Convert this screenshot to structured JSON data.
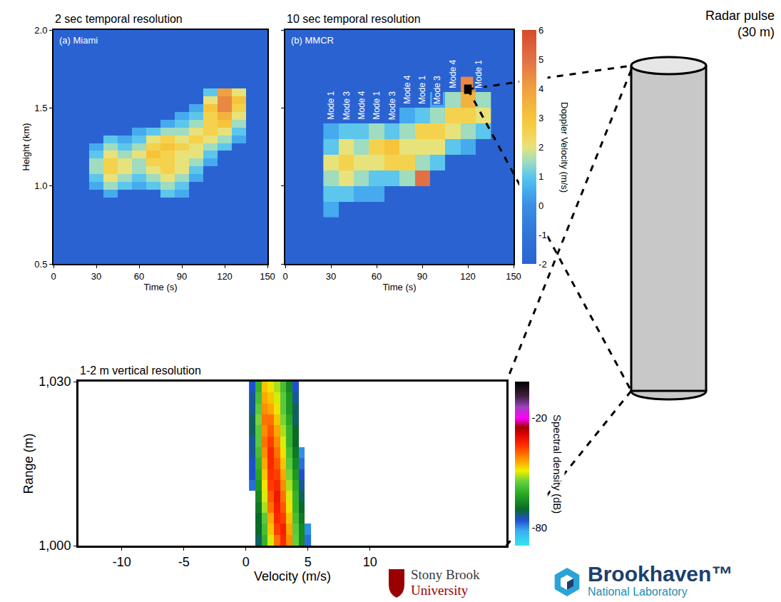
{
  "chart_data": [
    {
      "type": "heatmap",
      "title": "2 sec temporal resolution",
      "panel_label": "(a) Miami",
      "x_label": "Time (s)",
      "y_label": "Height (km)",
      "x": [
        30,
        40,
        50,
        60,
        70,
        80,
        90,
        100,
        110,
        120,
        130
      ],
      "y": [
        0.95,
        1.0,
        1.05,
        1.1,
        1.15,
        1.2,
        1.25,
        1.3,
        1.35,
        1.4,
        1.45,
        1.5,
        1.55,
        1.6
      ],
      "z": [
        [
          null,
          0.5,
          null,
          null,
          null,
          1.0,
          0.5,
          null,
          null,
          null,
          null
        ],
        [
          0.5,
          1.5,
          1.0,
          0.5,
          1.0,
          1.5,
          1.0,
          null,
          null,
          null,
          null
        ],
        [
          1.0,
          2.0,
          1.5,
          1.0,
          1.5,
          2.0,
          1.5,
          0.5,
          null,
          null,
          null
        ],
        [
          1.5,
          2.5,
          2.0,
          1.5,
          2.0,
          2.5,
          2.0,
          1.0,
          null,
          null,
          null
        ],
        [
          1.5,
          2.5,
          2.0,
          1.5,
          2.5,
          2.5,
          2.0,
          1.5,
          0.5,
          null,
          null
        ],
        [
          1.0,
          2.0,
          1.5,
          2.0,
          3.0,
          2.5,
          2.0,
          2.0,
          1.0,
          null,
          null
        ],
        [
          0.5,
          1.5,
          1.0,
          1.5,
          2.5,
          3.0,
          2.5,
          2.0,
          1.5,
          1.0,
          null
        ],
        [
          null,
          1.0,
          0.5,
          1.0,
          2.0,
          2.5,
          2.0,
          2.5,
          2.0,
          1.5,
          0.5
        ],
        [
          null,
          null,
          null,
          0.5,
          1.0,
          1.5,
          1.5,
          2.0,
          2.5,
          2.0,
          1.0
        ],
        [
          null,
          null,
          null,
          null,
          null,
          0.5,
          1.0,
          1.5,
          2.5,
          3.0,
          1.5
        ],
        [
          null,
          null,
          null,
          null,
          null,
          null,
          0.5,
          1.0,
          2.5,
          3.5,
          2.0
        ],
        [
          null,
          null,
          null,
          null,
          null,
          null,
          null,
          0.5,
          3.0,
          4.5,
          2.5
        ],
        [
          null,
          null,
          null,
          null,
          null,
          null,
          null,
          null,
          2.0,
          4.5,
          3.0
        ],
        [
          null,
          null,
          null,
          null,
          null,
          null,
          null,
          null,
          1.0,
          4.0,
          2.0
        ]
      ],
      "xlim": [
        0,
        150
      ],
      "xticks": [
        0,
        30,
        60,
        90,
        120,
        150
      ],
      "ylim": [
        0.5,
        2.0
      ],
      "yticks": [
        0.5,
        {
          "value": 1,
          "label": "1.0"
        },
        1.5,
        {
          "value": 2,
          "label": "2.0"
        }
      ]
    },
    {
      "type": "heatmap",
      "title": "10 sec temporal resolution",
      "panel_label": "(b) MMCR",
      "x_label": "Time (s)",
      "tick_labels": "x",
      "x": [
        30,
        40,
        50,
        60,
        70,
        80,
        90,
        100,
        110,
        120,
        130
      ],
      "y": [
        0.85,
        0.95,
        1.05,
        1.15,
        1.25,
        1.35,
        1.45,
        1.55,
        1.65
      ],
      "z": [
        [
          0.5,
          null,
          null,
          null,
          null,
          null,
          null,
          null,
          null,
          null,
          null
        ],
        [
          1.0,
          1.0,
          0.5,
          0.5,
          null,
          null,
          null,
          null,
          null,
          null,
          null
        ],
        [
          1.5,
          2.0,
          1.5,
          1.0,
          1.0,
          1.5,
          5.0,
          null,
          null,
          null,
          null
        ],
        [
          2.0,
          2.5,
          2.0,
          2.0,
          2.5,
          2.5,
          1.5,
          1.0,
          null,
          null,
          null
        ],
        [
          1.0,
          2.0,
          1.5,
          2.5,
          3.0,
          2.0,
          2.0,
          2.0,
          1.0,
          0.5,
          null
        ],
        [
          0.5,
          1.0,
          1.0,
          1.5,
          1.0,
          1.5,
          2.5,
          2.5,
          2.0,
          1.5,
          1.0
        ],
        [
          null,
          null,
          null,
          null,
          null,
          0.5,
          1.0,
          1.5,
          2.5,
          2.5,
          2.0
        ],
        [
          null,
          null,
          null,
          null,
          null,
          null,
          null,
          0.5,
          1.5,
          3.5,
          1.5
        ],
        [
          null,
          null,
          null,
          null,
          null,
          null,
          null,
          null,
          null,
          4.5,
          null
        ]
      ],
      "xlim": [
        0,
        150
      ],
      "xticks": [
        0,
        30,
        60,
        90,
        120,
        150
      ],
      "ylim": [
        0.5,
        2.0
      ],
      "yticks": [
        0.5,
        {
          "value": 1,
          "label": "1.0"
        },
        1.5,
        {
          "value": 2,
          "label": "2.0"
        }
      ],
      "annotations": [
        {
          "text": "Mode 1",
          "x": 30,
          "y": 1.42
        },
        {
          "text": "Mode 3",
          "x": 40,
          "y": 1.42
        },
        {
          "text": "Mode 4",
          "x": 50,
          "y": 1.42
        },
        {
          "text": "Mode 1",
          "x": 60,
          "y": 1.42
        },
        {
          "text": "Mode 3",
          "x": 70,
          "y": 1.42
        },
        {
          "text": "Mode 4",
          "x": 80,
          "y": 1.52
        },
        {
          "text": "Mode 1",
          "x": 90,
          "y": 1.52
        },
        {
          "text": "Mode 3",
          "x": 100,
          "y": 1.52
        },
        {
          "text": "Mode 4",
          "x": 110,
          "y": 1.62
        },
        {
          "text": "Mode 1",
          "x": 127,
          "y": 1.62
        }
      ],
      "highlight": {
        "x": 120,
        "y": 1.62
      },
      "colorbar": {
        "title": "Doppler Velocity (m/s)",
        "range": [
          -2,
          6
        ],
        "ticks": [
          -2,
          -1,
          0,
          1,
          2,
          3,
          4,
          5,
          6
        ]
      }
    },
    {
      "type": "heatmap",
      "title": "1-2 m vertical resolution",
      "x_label": "Velocity (m/s)",
      "y_label": "Range (m)",
      "x": [
        0.5,
        1.0,
        1.5,
        2.0,
        2.5,
        3.0,
        3.5,
        4.0,
        4.5,
        5.0
      ],
      "y": [
        1001,
        1003,
        1005,
        1007,
        1009,
        1011,
        1013,
        1015,
        1017,
        1019,
        1021,
        1023,
        1025,
        1027,
        1029
      ],
      "z": [
        [
          null,
          -72,
          -60,
          -50,
          -40,
          -34,
          -42,
          -55,
          -66,
          -78
        ],
        [
          null,
          -70,
          -58,
          -46,
          -36,
          -33,
          -44,
          -56,
          -66,
          -80
        ],
        [
          null,
          -70,
          -56,
          -44,
          -34,
          -36,
          -46,
          -58,
          -68,
          null
        ],
        [
          null,
          -68,
          -52,
          -40,
          -33,
          -38,
          -48,
          -60,
          -70,
          null
        ],
        [
          null,
          -66,
          -50,
          -38,
          -32,
          -40,
          -50,
          -60,
          -72,
          null
        ],
        [
          -78,
          -64,
          -48,
          -36,
          -34,
          -42,
          -52,
          -62,
          -74,
          null
        ],
        [
          -76,
          -62,
          -46,
          -35,
          -36,
          -44,
          -54,
          -64,
          -76,
          null
        ],
        [
          -76,
          -60,
          -44,
          -34,
          -38,
          -46,
          -56,
          -66,
          -78,
          null
        ],
        [
          -74,
          -58,
          -42,
          -34,
          -40,
          -48,
          -58,
          -68,
          -80,
          null
        ],
        [
          -74,
          -56,
          -40,
          -36,
          -42,
          -50,
          -60,
          -70,
          null,
          null
        ],
        [
          -72,
          -56,
          -42,
          -38,
          -44,
          -52,
          -60,
          -70,
          null,
          null
        ],
        [
          -72,
          -54,
          -40,
          -40,
          -46,
          -54,
          -62,
          -72,
          null,
          null
        ],
        [
          -74,
          -56,
          -42,
          -44,
          -48,
          -56,
          -64,
          -72,
          null,
          null
        ],
        [
          -74,
          -58,
          -44,
          -46,
          -50,
          -56,
          -64,
          -74,
          null,
          null
        ],
        [
          -76,
          -60,
          -46,
          -48,
          -52,
          -58,
          -66,
          -76,
          null,
          null
        ]
      ],
      "xlim": [
        -13.5,
        21
      ],
      "xticks": [
        -10,
        -5,
        0,
        5,
        10
      ],
      "ylim": [
        1000,
        1030
      ],
      "yticks": [
        {
          "value": 1000,
          "label": "1,000"
        },
        {
          "value": 1030,
          "label": "1,030"
        }
      ],
      "colorbar": {
        "title": "Spectral density (dB)",
        "range": [
          -90,
          0
        ],
        "ticks": [
          -20,
          -80
        ]
      }
    }
  ],
  "diagram": {
    "label": [
      "Radar pulse",
      "(30 m)"
    ]
  },
  "logos": [
    {
      "lines": [
        "Stony Brook",
        "University"
      ]
    },
    {
      "lines": [
        "Brookhaven™",
        "National Laboratory"
      ]
    }
  ]
}
